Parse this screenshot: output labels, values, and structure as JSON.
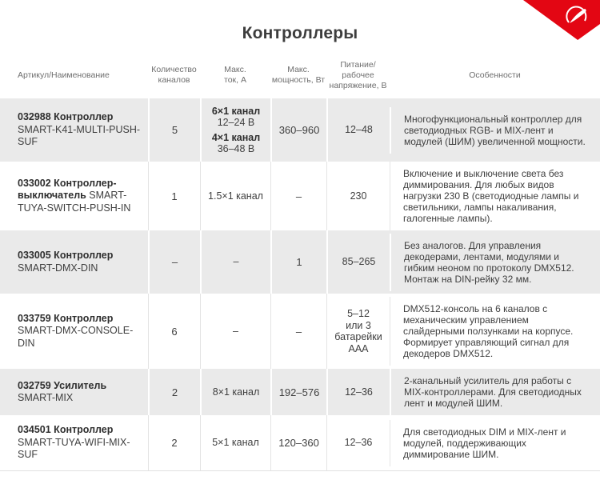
{
  "title": "Контроллеры",
  "brand": {
    "ribbon_color": "#e30613",
    "logo_icon": "arlight-feather-icon",
    "logo_color": "#ffffff"
  },
  "table": {
    "stripe_color": "#eaeaea",
    "columns": [
      {
        "label": "Артикул/Наименование"
      },
      {
        "label": "Количество\nканалов"
      },
      {
        "label": "Макс.\nток, А"
      },
      {
        "label": "Макс.\nмощность, Вт"
      },
      {
        "label": "Питание/\nрабочее\nнапряжение, В"
      },
      {
        "label": "Особенности"
      }
    ],
    "rows": [
      {
        "article": {
          "bold": "032988 Контроллер",
          "code": "SMART-K41-MULTI-PUSH-SUF"
        },
        "channels": "5",
        "max_current": [
          {
            "text": "6×1 канал",
            "bold": true
          },
          {
            "text": "12–24 В",
            "bold": false
          },
          {
            "text": "4×1 канал",
            "bold": true
          },
          {
            "text": "36–48 В",
            "bold": false
          }
        ],
        "max_power": "360–960",
        "voltage": "12–48",
        "features": "Многофункциональный контроллер для светодиодных RGB- и MIX-лент и модулей (ШИМ) увеличенной мощности."
      },
      {
        "article": {
          "bold": "033002 Контроллер-выключатель",
          "code": "SMART-TUYA-SWITCH-PUSH-IN"
        },
        "channels": "1",
        "max_current": [
          {
            "text": "1.5×1 канал",
            "bold": false
          }
        ],
        "max_power": "–",
        "voltage": "230",
        "features": "Включение и выключение света без диммирования. Для любых видов нагрузки 230 В (светодиодные лампы и светильники, лампы накаливания, галогенные лампы)."
      },
      {
        "article": {
          "bold": "033005 Контроллер",
          "code": "SMART-DMX-DIN"
        },
        "channels": "–",
        "max_current": [
          {
            "text": "–",
            "bold": false
          }
        ],
        "max_power": "1",
        "voltage": "85–265",
        "features": "Без аналогов. Для управления декодерами, лентами, модулями и гибким неоном по протоколу DMX512. Монтаж на DIN-рейку 32 мм."
      },
      {
        "article": {
          "bold": "033759 Контроллер",
          "code": "SMART-DMX-CONSOLE-DIN"
        },
        "channels": "6",
        "max_current": [
          {
            "text": "–",
            "bold": false
          }
        ],
        "max_power": "–",
        "voltage": "5–12\nили 3\nбатарейки\nААА",
        "features": "DMX512-консоль на 6 каналов с механическим управлением слайдерными ползунками на корпусе. Формирует управляющий сигнал для декодеров DMX512."
      },
      {
        "article": {
          "bold": "032759 Усилитель",
          "code": "SMART-MIX"
        },
        "channels": "2",
        "max_current": [
          {
            "text": "8×1 канал",
            "bold": false
          }
        ],
        "max_power": "192–576",
        "voltage": "12–36",
        "features": "2-канальный усилитель для работы с MIX-контроллерами. Для светодиодных лент и модулей ШИМ."
      },
      {
        "article": {
          "bold": "034501 Контроллер",
          "code": "SMART-TUYA-WIFI-MIX-SUF"
        },
        "channels": "2",
        "max_current": [
          {
            "text": "5×1 канал",
            "bold": false
          }
        ],
        "max_power": "120–360",
        "voltage": "12–36",
        "features": "Для светодиодных DIM и MIX-лент и модулей, поддерживающих диммирование ШИМ."
      }
    ]
  }
}
